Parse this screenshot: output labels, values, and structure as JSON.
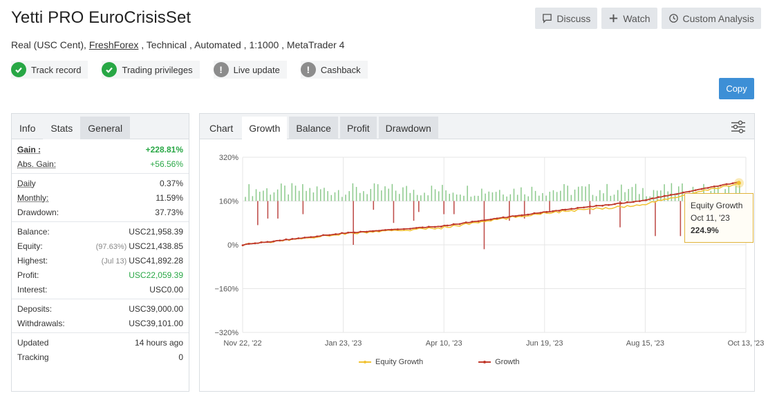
{
  "header": {
    "title": "Yetti PRO EuroCrisisSet",
    "subtitle_pre": "Real (USC Cent), ",
    "broker": "FreshForex",
    "subtitle_post": " , Technical , Automated , 1:1000 , MetaTrader 4"
  },
  "buttons": {
    "discuss": "Discuss",
    "watch": "Watch",
    "custom_analysis": "Custom Analysis",
    "copy": "Copy"
  },
  "badges": [
    {
      "label": "Track record",
      "status": "ok"
    },
    {
      "label": "Trading privileges",
      "status": "ok"
    },
    {
      "label": "Live update",
      "status": "warn"
    },
    {
      "label": "Cashback",
      "status": "warn"
    }
  ],
  "stats_tabs": [
    "Info",
    "Stats",
    "General"
  ],
  "stats": {
    "gain_label": "Gain :",
    "gain": "+228.81%",
    "abs_gain_label": "Abs. Gain:",
    "abs_gain": "+56.56%",
    "daily_label": "Daily",
    "daily": "0.37%",
    "monthly_label": "Monthly:",
    "monthly": "11.59%",
    "drawdown_label": "Drawdown:",
    "drawdown": "37.73%",
    "balance_label": "Balance:",
    "balance": "USC21,958.39",
    "equity_label": "Equity:",
    "equity_pct": "(97.63%)",
    "equity": "USC21,438.85",
    "highest_label": "Highest:",
    "highest_date": "(Jul 13)",
    "highest": "USC41,892.28",
    "profit_label": "Profit:",
    "profit": "USC22,059.39",
    "interest_label": "Interest:",
    "interest": "USC0.00",
    "deposits_label": "Deposits:",
    "deposits": "USC39,000.00",
    "withdrawals_label": "Withdrawals:",
    "withdrawals": "USC39,101.00",
    "updated_label": "Updated",
    "updated": "14 hours ago",
    "tracking_label": "Tracking",
    "tracking": "0"
  },
  "chart_tabs": {
    "label": "Chart",
    "tabs": [
      "Growth",
      "Balance",
      "Profit",
      "Drawdown"
    ],
    "active": "Growth"
  },
  "tooltip": {
    "series": "Equity Growth",
    "date": "Oct 11, '23",
    "value": "224.9%"
  },
  "colors": {
    "growth": "#c0392b",
    "equity": "#f1c232",
    "bar_positive": "#8bc98b",
    "bar_negative": "#c0504d",
    "accent": "#3d8fd6"
  },
  "chart_data": {
    "type": "line",
    "ylim": [
      -320,
      320
    ],
    "y_ticks": [
      "320%",
      "160%",
      "0%",
      "−160%",
      "−320%"
    ],
    "x_ticks": [
      "Nov 22, '22",
      "Jan 23, '23",
      "Apr 10, '23",
      "Jun 19, '23",
      "Aug 15, '23",
      "Oct 13, '23"
    ],
    "legend": [
      "Equity Growth",
      "Growth"
    ],
    "series": [
      {
        "name": "Growth",
        "x": [
          "Nov 22, '22",
          "Jan 23, '23",
          "Apr 10, '23",
          "Jun 19, '23",
          "Aug 15, '23",
          "Oct 13, '23"
        ],
        "values": [
          0,
          42,
          68,
          118,
          160,
          230
        ]
      },
      {
        "name": "Equity Growth",
        "x": [
          "Nov 22, '22",
          "Jan 23, '23",
          "Apr 10, '23",
          "Jun 19, '23",
          "Aug 15, '23",
          "Oct 11, '23"
        ],
        "values": [
          0,
          40,
          62,
          115,
          145,
          224.9
        ]
      }
    ],
    "daily_bars_note_values": [
      -100,
      -60,
      -80,
      40,
      50,
      -200,
      -90,
      -250,
      -150,
      30
    ]
  }
}
